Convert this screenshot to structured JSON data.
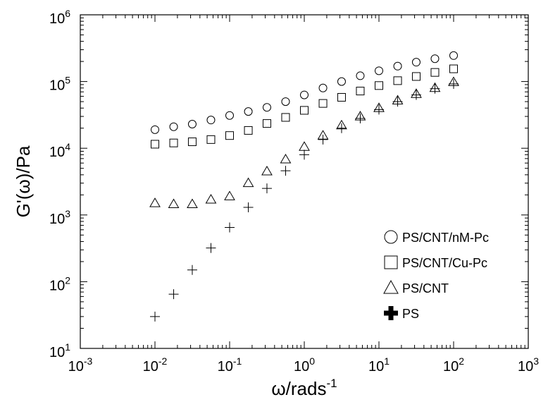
{
  "chart_data": {
    "type": "scatter",
    "xlabel": {
      "base": "ω/rads",
      "exponent": "-1"
    },
    "ylabel": "G'(ω)/Pa",
    "x_scale": "log",
    "y_scale": "log",
    "xlim": [
      0.001,
      1000
    ],
    "ylim": [
      10,
      1000000
    ],
    "x_ticks": [
      {
        "base": "10",
        "exp": "-3"
      },
      {
        "base": "10",
        "exp": "-2"
      },
      {
        "base": "10",
        "exp": "-1"
      },
      {
        "base": "10",
        "exp": "0"
      },
      {
        "base": "10",
        "exp": "1"
      },
      {
        "base": "10",
        "exp": "2"
      },
      {
        "base": "10",
        "exp": "3"
      }
    ],
    "y_ticks": [
      {
        "base": "10",
        "exp": "1"
      },
      {
        "base": "10",
        "exp": "2"
      },
      {
        "base": "10",
        "exp": "3"
      },
      {
        "base": "10",
        "exp": "4"
      },
      {
        "base": "10",
        "exp": "5"
      },
      {
        "base": "10",
        "exp": "6"
      }
    ],
    "grid": false,
    "legend_position": "bottom-right",
    "x": [
      0.01,
      0.0178,
      0.0316,
      0.0562,
      0.1,
      0.178,
      0.316,
      0.562,
      1,
      1.78,
      3.16,
      5.62,
      10,
      17.8,
      31.6,
      56.2,
      100
    ],
    "series": [
      {
        "name": "PS/CNT/nM-Pc",
        "marker": "circle",
        "values": [
          19000,
          21000,
          23000,
          26500,
          31000,
          35500,
          41000,
          50000,
          63000,
          80000,
          100000,
          122000,
          145000,
          170000,
          195000,
          220000,
          245000
        ]
      },
      {
        "name": "PS/CNT/Cu-Pc",
        "marker": "square",
        "values": [
          11500,
          12000,
          12500,
          13500,
          15500,
          18500,
          23500,
          29000,
          37000,
          47000,
          58000,
          72000,
          87000,
          103000,
          119000,
          137000,
          155000
        ]
      },
      {
        "name": "PS/CNT",
        "marker": "triangle",
        "values": [
          1500,
          1450,
          1450,
          1700,
          1900,
          3000,
          4500,
          6800,
          10500,
          15500,
          22000,
          30000,
          40000,
          52000,
          65000,
          80000,
          98000
        ]
      },
      {
        "name": "PS",
        "marker": "plus",
        "values": [
          30,
          65,
          150,
          320,
          650,
          1300,
          2500,
          4600,
          8000,
          13500,
          20000,
          28000,
          38000,
          50000,
          63000,
          78000,
          92000
        ]
      }
    ]
  }
}
